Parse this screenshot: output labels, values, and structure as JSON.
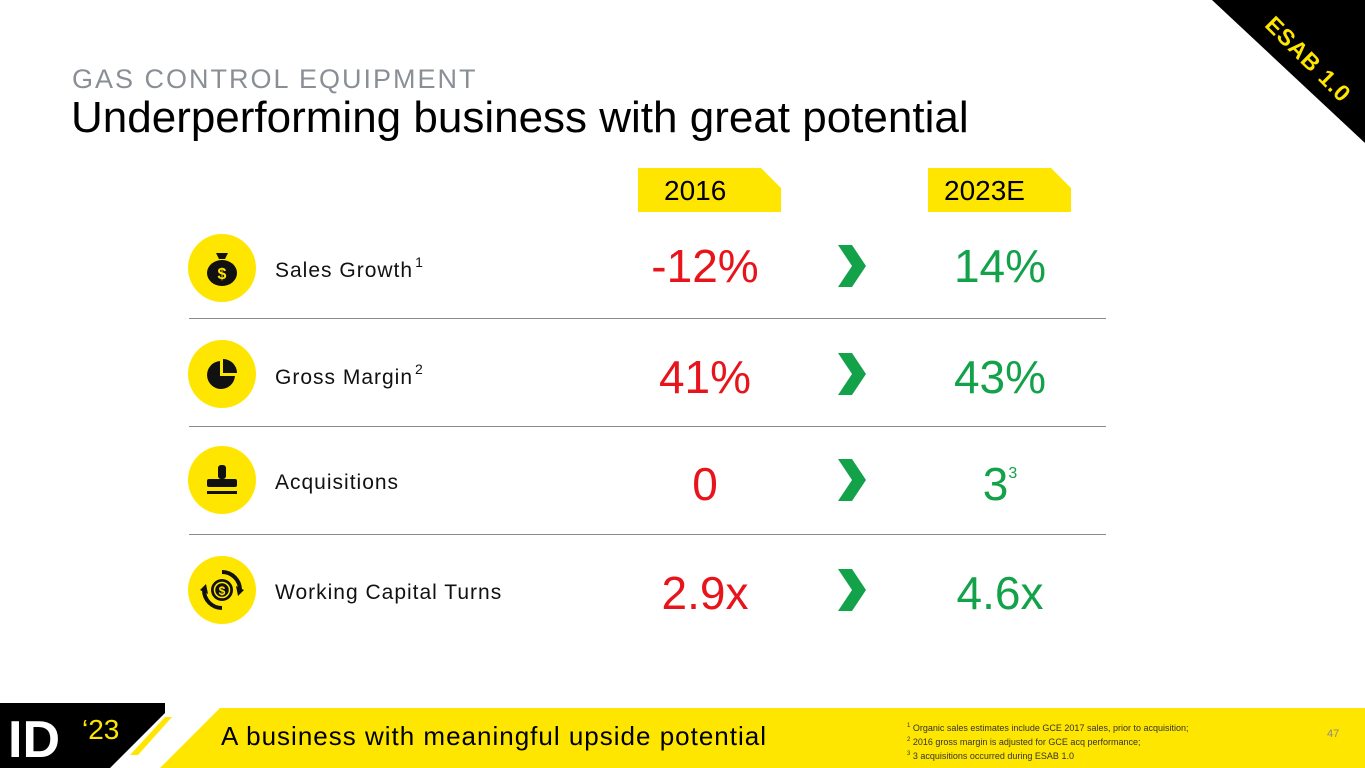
{
  "corner_tag": "ESAB 1.0",
  "header": {
    "kicker": "GAS CONTROL EQUIPMENT",
    "title": "Underperforming business with great potential"
  },
  "columns": {
    "from": "2016",
    "to": "2023E"
  },
  "rows": [
    {
      "icon": "money-bag-icon",
      "label": "Sales Growth",
      "note": "1",
      "from": "-12%",
      "to": "14%",
      "to_note": ""
    },
    {
      "icon": "pie-chart-icon",
      "label": "Gross Margin",
      "note": "2",
      "from": "41%",
      "to": "43%",
      "to_note": ""
    },
    {
      "icon": "stamp-icon",
      "label": "Acquisitions",
      "note": "",
      "from": "0",
      "to": "3",
      "to_note": "3"
    },
    {
      "icon": "cash-cycle-icon",
      "label": "Working Capital Turns",
      "note": "",
      "from": "2.9x",
      "to": "4.6x",
      "to_note": ""
    }
  ],
  "colors": {
    "accent": "#ffe600",
    "negative": "#e8141b",
    "positive": "#13a24a"
  },
  "banner": {
    "logo_text": "ID",
    "logo_year": "‘23",
    "message": "A business with meaningful upside potential"
  },
  "footnotes": [
    {
      "num": "1",
      "text": "Organic sales estimates include GCE 2017 sales, prior to acquisition;"
    },
    {
      "num": "2",
      "text": "2016 gross margin is adjusted for GCE acq performance;"
    },
    {
      "num": "3",
      "text": "3 acquisitions occurred during ESAB 1.0"
    }
  ],
  "page_number": "47"
}
